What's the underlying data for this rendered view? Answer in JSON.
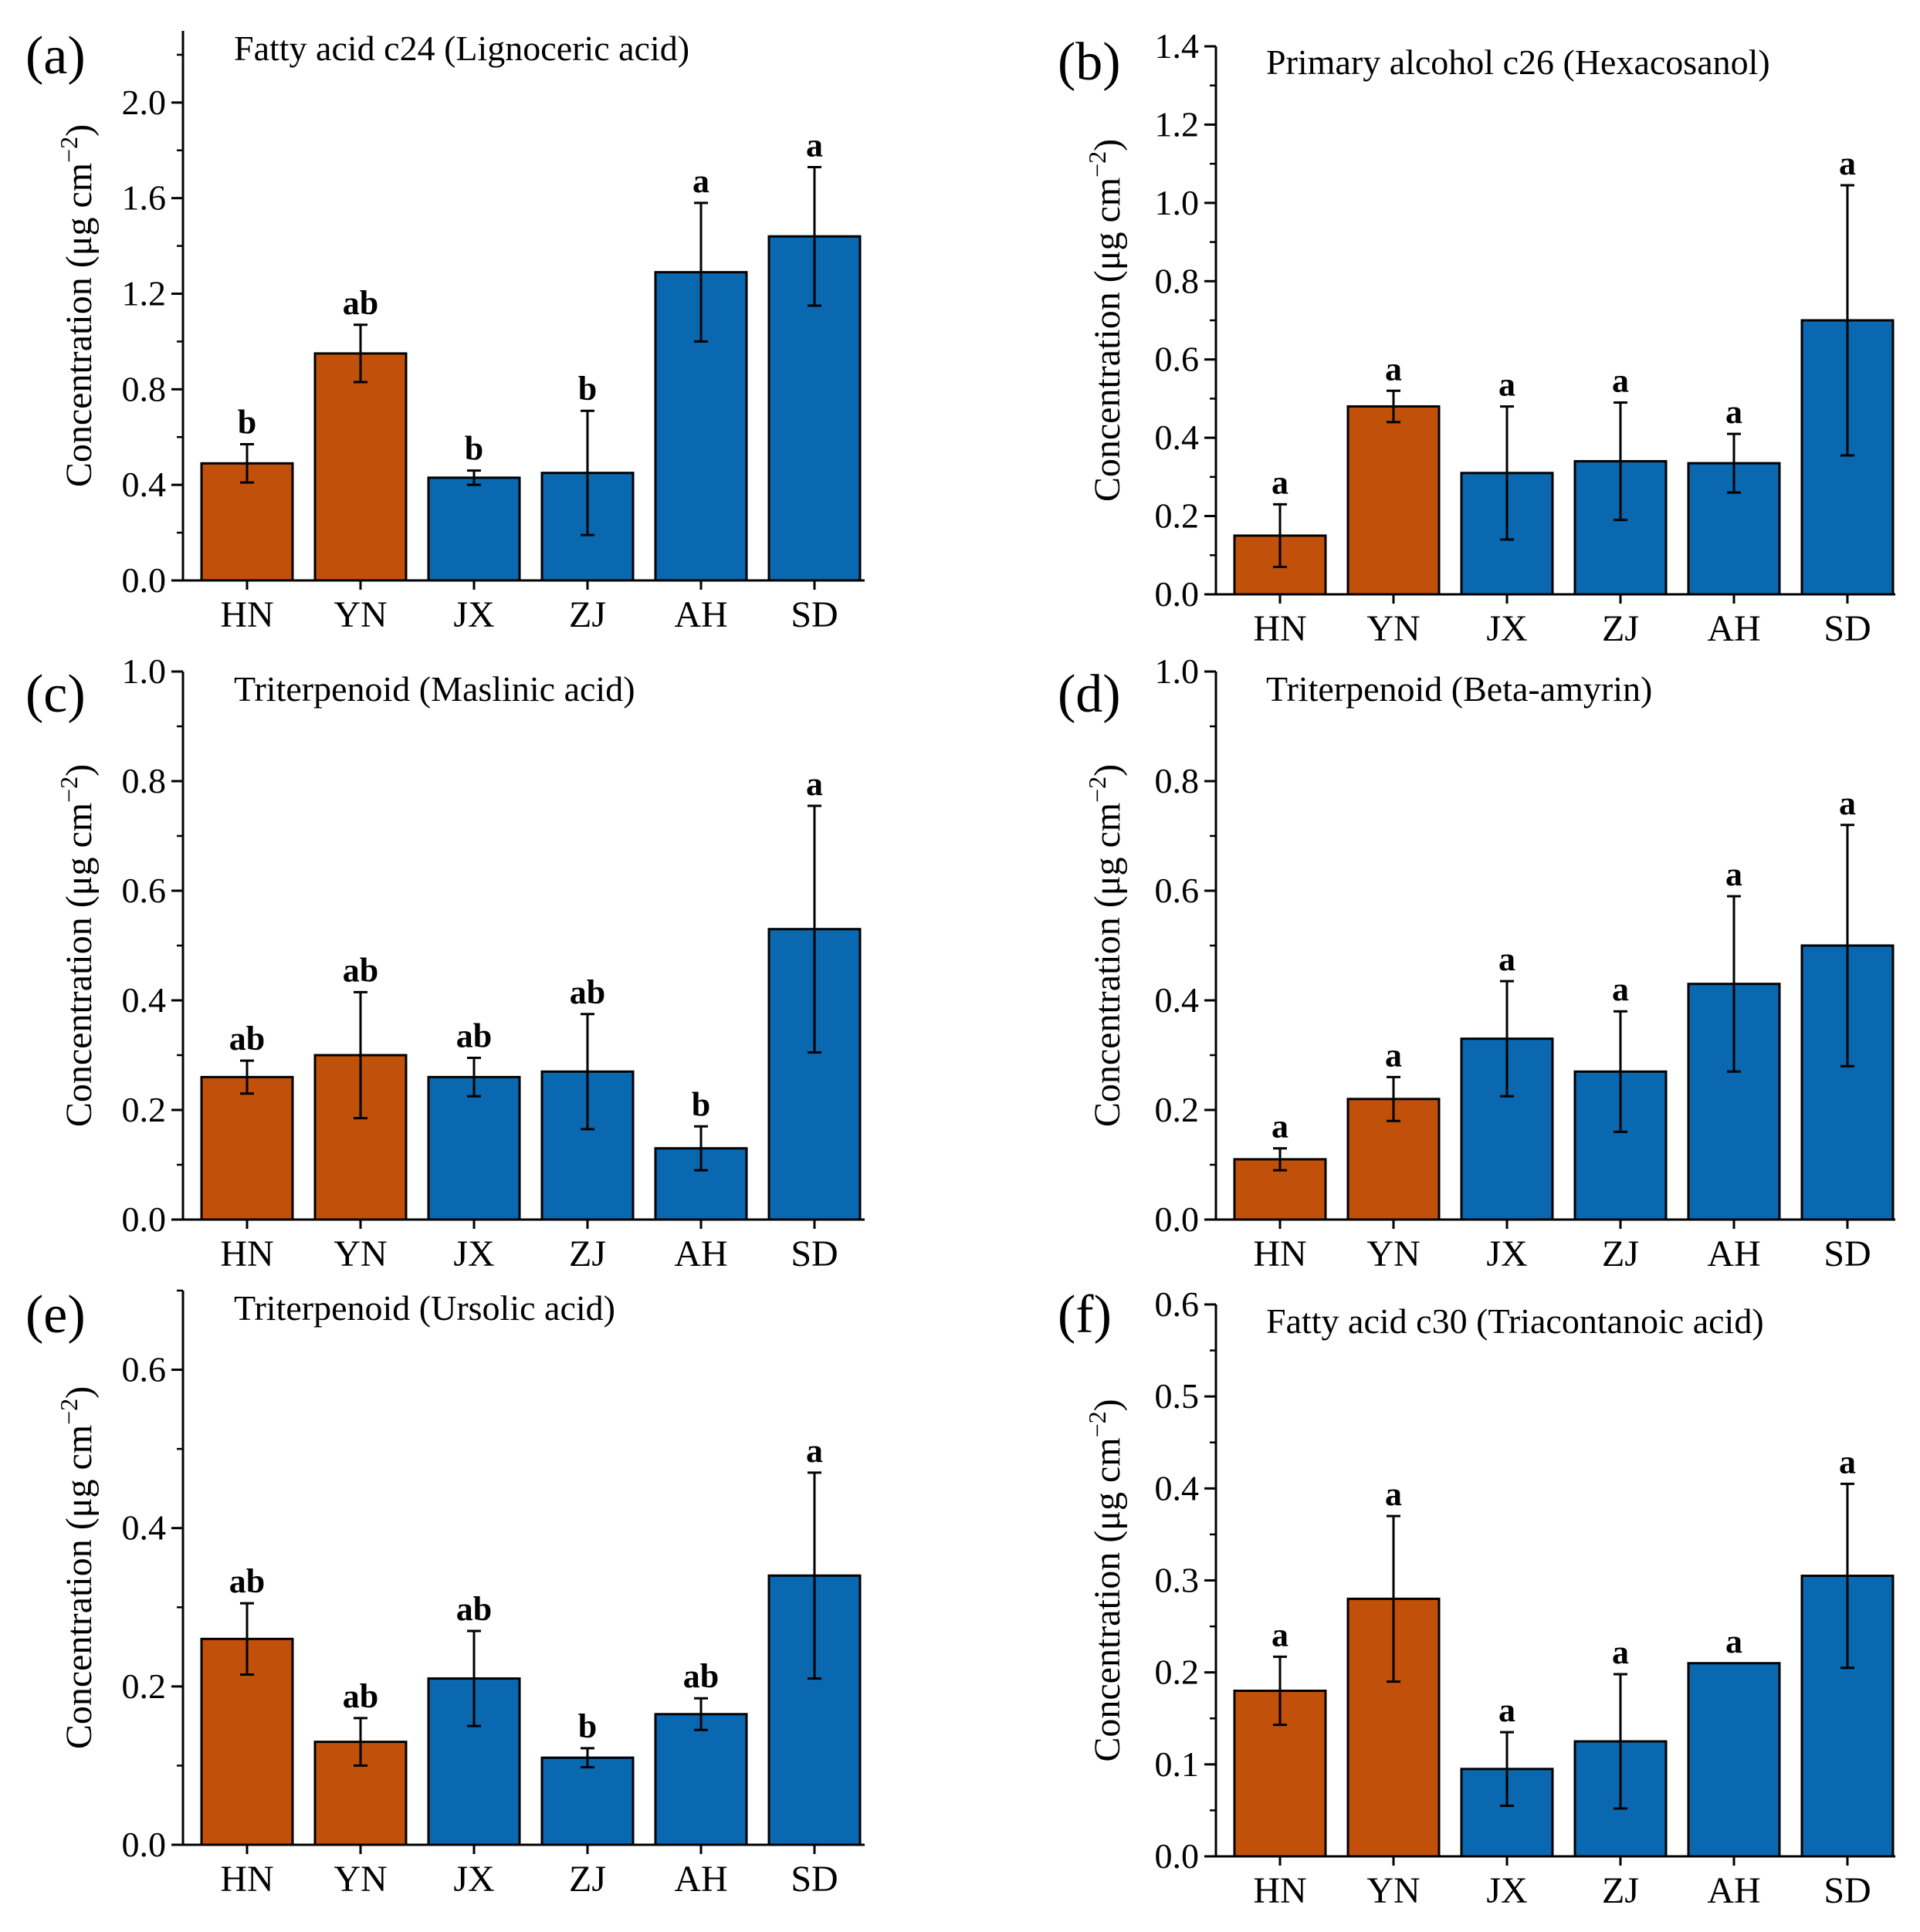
{
  "chart_data": [
    {
      "type": "bar",
      "panel": "(a)",
      "title": "Fatty acid c24 (Lignoceric acid)",
      "ylabel": "Concentration (μg cm⁻²)",
      "xlabel": "",
      "categories": [
        "HN",
        "YN",
        "JX",
        "ZJ",
        "AH",
        "SD"
      ],
      "values": [
        0.49,
        0.95,
        0.43,
        0.45,
        1.29,
        1.44
      ],
      "errors": [
        0.08,
        0.12,
        0.03,
        0.26,
        0.29,
        0.29
      ],
      "significance": [
        "b",
        "ab",
        "b",
        "b",
        "a",
        "a"
      ],
      "bar_colors": [
        "#C1510A",
        "#C1510A",
        "#0968AF",
        "#0968AF",
        "#0968AF",
        "#0968AF"
      ],
      "ylim": [
        0,
        2.3
      ],
      "yticks": [
        "0.0",
        "0.4",
        "0.8",
        "1.2",
        "1.6",
        "2.0"
      ],
      "ytick_values": [
        0,
        0.4,
        0.8,
        1.2,
        1.6,
        2.0
      ],
      "minor_step": 0.2
    },
    {
      "type": "bar",
      "panel": "(b)",
      "title": "Primary alcohol c26 (Hexacosanol)",
      "ylabel": "Concentration (μg cm⁻²)",
      "xlabel": "",
      "categories": [
        "HN",
        "YN",
        "JX",
        "ZJ",
        "AH",
        "SD"
      ],
      "values": [
        0.15,
        0.48,
        0.31,
        0.34,
        0.335,
        0.7
      ],
      "errors": [
        0.08,
        0.04,
        0.17,
        0.15,
        0.075,
        0.345
      ],
      "significance": [
        "a",
        "a",
        "a",
        "a",
        "a",
        "a"
      ],
      "bar_colors": [
        "#C1510A",
        "#C1510A",
        "#0968AF",
        "#0968AF",
        "#0968AF",
        "#0968AF"
      ],
      "ylim": [
        0,
        1.4
      ],
      "yticks": [
        "0.0",
        "0.2",
        "0.4",
        "0.6",
        "0.8",
        "1.0",
        "1.2",
        "1.4"
      ],
      "ytick_values": [
        0,
        0.2,
        0.4,
        0.6,
        0.8,
        1.0,
        1.2,
        1.4
      ],
      "minor_step": 0.1
    },
    {
      "type": "bar",
      "panel": "(c)",
      "title": "Triterpenoid (Maslinic acid)",
      "ylabel": "Concentration (μg cm⁻²)",
      "xlabel": "",
      "categories": [
        "HN",
        "YN",
        "JX",
        "ZJ",
        "AH",
        "SD"
      ],
      "values": [
        0.26,
        0.3,
        0.26,
        0.27,
        0.13,
        0.53
      ],
      "errors": [
        0.03,
        0.115,
        0.035,
        0.105,
        0.04,
        0.225
      ],
      "significance": [
        "ab",
        "ab",
        "ab",
        "ab",
        "b",
        "a"
      ],
      "bar_colors": [
        "#C1510A",
        "#C1510A",
        "#0968AF",
        "#0968AF",
        "#0968AF",
        "#0968AF"
      ],
      "ylim": [
        0,
        1.0
      ],
      "yticks": [
        "0.0",
        "0.2",
        "0.4",
        "0.6",
        "0.8",
        "1.0"
      ],
      "ytick_values": [
        0,
        0.2,
        0.4,
        0.6,
        0.8,
        1.0
      ],
      "minor_step": 0.1
    },
    {
      "type": "bar",
      "panel": "(d)",
      "title": "Triterpenoid (Beta-amyrin)",
      "ylabel": "Concentration (μg cm⁻²)",
      "xlabel": "",
      "categories": [
        "HN",
        "YN",
        "JX",
        "ZJ",
        "AH",
        "SD"
      ],
      "values": [
        0.11,
        0.22,
        0.33,
        0.27,
        0.43,
        0.5
      ],
      "errors": [
        0.02,
        0.04,
        0.105,
        0.11,
        0.16,
        0.22
      ],
      "significance": [
        "a",
        "a",
        "a",
        "a",
        "a",
        "a"
      ],
      "bar_colors": [
        "#C1510A",
        "#C1510A",
        "#0968AF",
        "#0968AF",
        "#0968AF",
        "#0968AF"
      ],
      "ylim": [
        0,
        1.0
      ],
      "yticks": [
        "0.0",
        "0.2",
        "0.4",
        "0.6",
        "0.8",
        "1.0"
      ],
      "ytick_values": [
        0,
        0.2,
        0.4,
        0.6,
        0.8,
        1.0
      ],
      "minor_step": 0.1
    },
    {
      "type": "bar",
      "panel": "(e)",
      "title": "Triterpenoid (Ursolic acid)",
      "ylabel": "Concentration (μg cm⁻²)",
      "xlabel": "",
      "categories": [
        "HN",
        "YN",
        "JX",
        "ZJ",
        "AH",
        "SD"
      ],
      "values": [
        0.26,
        0.13,
        0.21,
        0.11,
        0.165,
        0.34
      ],
      "errors": [
        0.045,
        0.03,
        0.06,
        0.012,
        0.02,
        0.13
      ],
      "significance": [
        "ab",
        "ab",
        "ab",
        "b",
        "ab",
        "a"
      ],
      "bar_colors": [
        "#C1510A",
        "#C1510A",
        "#0968AF",
        "#0968AF",
        "#0968AF",
        "#0968AF"
      ],
      "ylim": [
        0,
        0.7
      ],
      "yticks": [
        "0.0",
        "0.2",
        "0.4",
        "0.6"
      ],
      "ytick_values": [
        0,
        0.2,
        0.4,
        0.6
      ],
      "minor_step": 0.1
    },
    {
      "type": "bar",
      "panel": "(f)",
      "title": "Fatty acid c30 (Triacontanoic acid)",
      "ylabel": "Concentration (μg cm⁻²)",
      "xlabel": "",
      "categories": [
        "HN",
        "YN",
        "JX",
        "ZJ",
        "AH",
        "SD"
      ],
      "values": [
        0.18,
        0.28,
        0.095,
        0.125,
        0.21,
        0.305
      ],
      "errors": [
        0.037,
        0.09,
        0.04,
        0.073,
        0.0,
        0.1
      ],
      "significance": [
        "a",
        "a",
        "a",
        "a",
        "a",
        "a"
      ],
      "bar_colors": [
        "#C1510A",
        "#C1510A",
        "#0968AF",
        "#0968AF",
        "#0968AF",
        "#0968AF"
      ],
      "ylim": [
        0,
        0.6
      ],
      "yticks": [
        "0.0",
        "0.1",
        "0.2",
        "0.3",
        "0.4",
        "0.5",
        "0.6"
      ],
      "ytick_values": [
        0,
        0.1,
        0.2,
        0.3,
        0.4,
        0.5,
        0.6
      ],
      "minor_step": 0.05
    }
  ]
}
